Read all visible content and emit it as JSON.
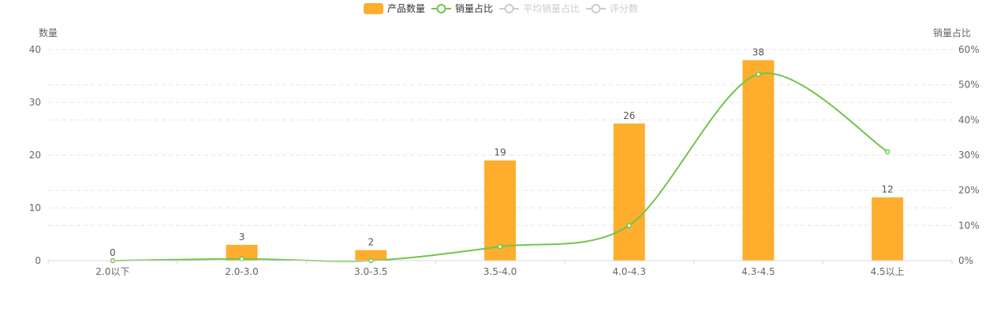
{
  "chart_data": {
    "type": "bar",
    "categories": [
      "2.0以下",
      "2.0-3.0",
      "3.0-3.5",
      "3.5-4.0",
      "4.0-4.3",
      "4.3-4.5",
      "4.5以上"
    ],
    "series": [
      {
        "name": "产品数量",
        "type": "bar",
        "axis": "left",
        "values": [
          0,
          3,
          2,
          19,
          26,
          38,
          12
        ],
        "color": "#FFAD2D"
      },
      {
        "name": "销量占比",
        "type": "line",
        "axis": "right",
        "smooth": true,
        "values": [
          0,
          0.5,
          0,
          4,
          10,
          53,
          31
        ],
        "unit": "%",
        "color": "#6FC64B"
      }
    ],
    "legend": [
      {
        "name": "产品数量",
        "active": true,
        "color": "#FFAD2D"
      },
      {
        "name": "销量占比",
        "active": true,
        "color": "#6FC64B"
      },
      {
        "name": "平均销量占比",
        "active": false,
        "color": "#CCCCCC"
      },
      {
        "name": "评分数",
        "active": false,
        "color": "#CCCCCC"
      }
    ],
    "legend_position": "top-center",
    "ylabel_left": "数量",
    "ylabel_right": "销量占比",
    "ylim_left": [
      0,
      40
    ],
    "ylim_right": [
      0,
      60
    ],
    "yticks_left": [
      "0",
      "10",
      "20",
      "30",
      "40"
    ],
    "yticks_right": [
      "0%",
      "10%",
      "20%",
      "30%",
      "40%",
      "50%",
      "60%"
    ],
    "grid": "dashed horizontal"
  }
}
